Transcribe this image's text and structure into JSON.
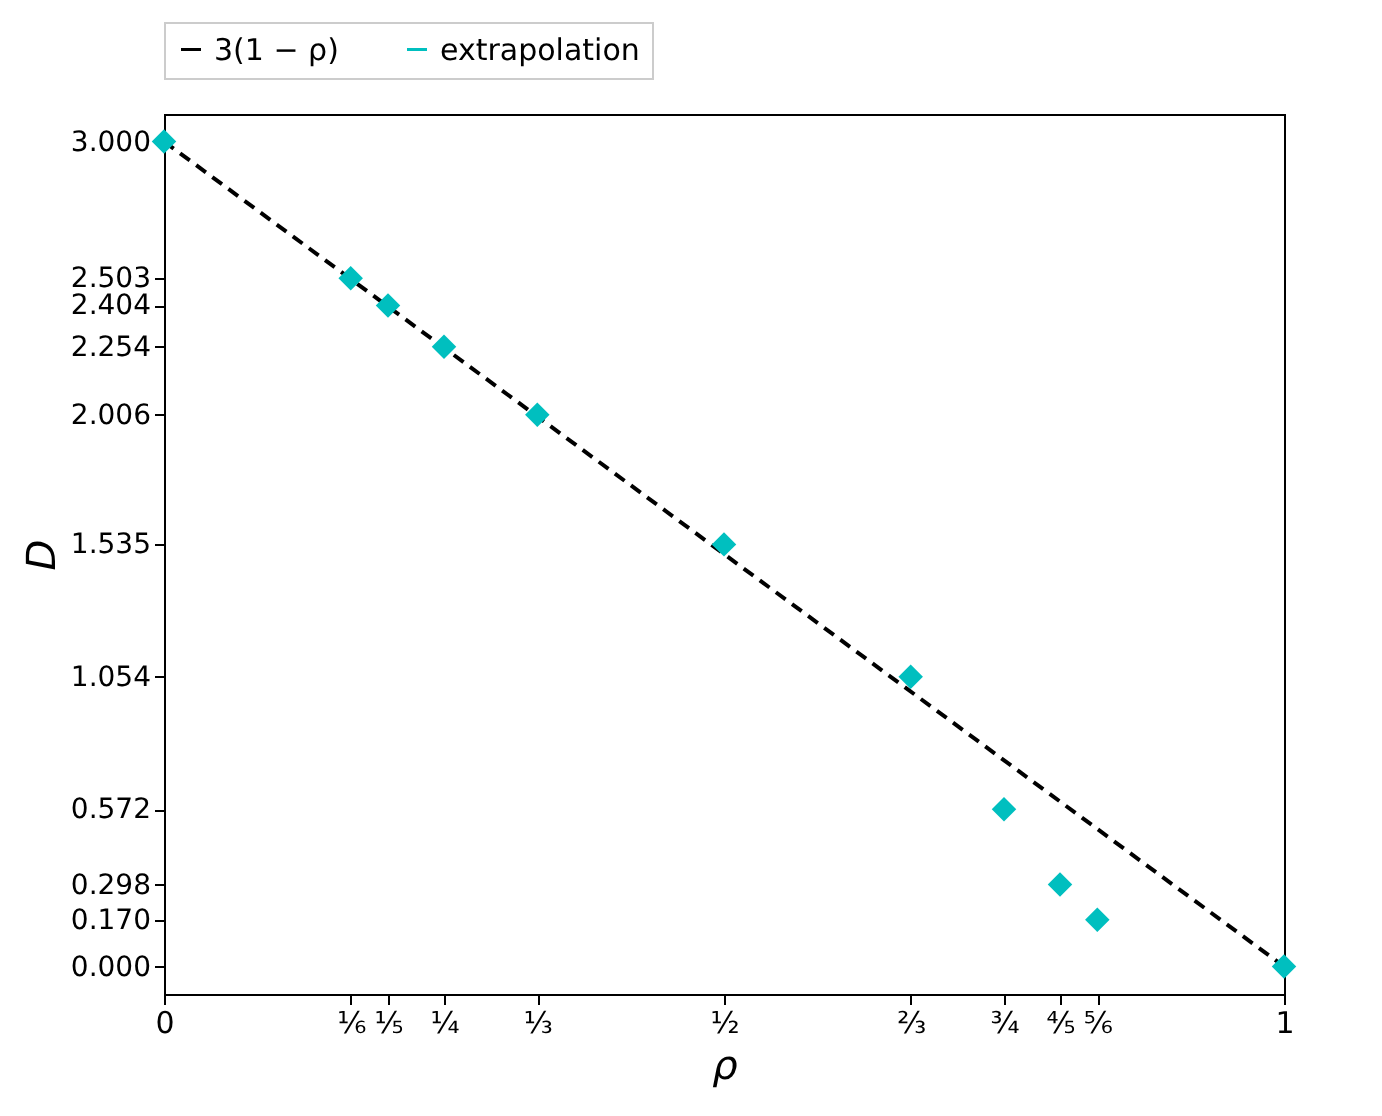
{
  "chart_data": {
    "type": "scatter",
    "xlabel": "ρ",
    "ylabel": "D",
    "legend": "top",
    "grid": false,
    "xlim": [
      0,
      1
    ],
    "ylim": [
      -0.1,
      3.1
    ],
    "xticks": [
      0,
      {
        "value": 0.1667,
        "label": "⅙"
      },
      {
        "value": 0.2,
        "label": "⅕"
      },
      {
        "value": 0.25,
        "label": "¼"
      },
      {
        "value": 0.3333,
        "label": "⅓"
      },
      {
        "value": 0.5,
        "label": "½"
      },
      {
        "value": 0.6667,
        "label": "⅔"
      },
      {
        "value": 0.75,
        "label": "¾"
      },
      {
        "value": 0.8,
        "label": "⅘"
      },
      {
        "value": 0.8333,
        "label": "⅚"
      },
      1
    ],
    "yticks": [
      {
        "value": 0,
        "label": "0.000"
      },
      {
        "value": 0.17,
        "label": "0.170"
      },
      {
        "value": 0.298,
        "label": "0.298"
      },
      {
        "value": 0.572,
        "label": "0.572"
      },
      {
        "value": 1.054,
        "label": "1.054"
      },
      {
        "value": 1.535,
        "label": "1.535"
      },
      {
        "value": 2.006,
        "label": "2.006"
      },
      {
        "value": 2.254,
        "label": "2.254"
      },
      {
        "value": 2.404,
        "label": "2.404"
      },
      {
        "value": 2.503,
        "label": "2.503"
      },
      {
        "value": 3,
        "label": "3.000"
      }
    ],
    "series": [
      {
        "name": "3(1 − ρ)",
        "type": "line",
        "color": "#000000",
        "line_style": "dashed",
        "marker": "none",
        "x": [
          0,
          1
        ],
        "values": [
          3,
          0
        ]
      },
      {
        "name": "extrapolation",
        "color": "#00bfbf",
        "marker": "diamond",
        "x": [
          0,
          0.1667,
          0.2,
          0.25,
          0.3333,
          0.5,
          0.6667,
          0.75,
          0.8,
          0.8333,
          1
        ],
        "values": [
          3,
          2.503,
          2.404,
          2.254,
          2.006,
          1.535,
          1.054,
          0.572,
          0.298,
          0.17,
          0
        ]
      }
    ]
  }
}
